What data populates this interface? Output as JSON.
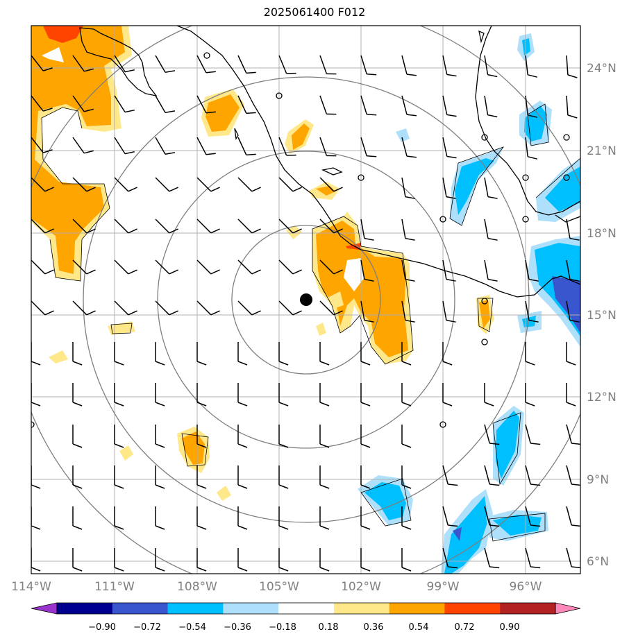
{
  "title": "2025061400 F012",
  "lon_labels": [
    "114°W",
    "111°W",
    "108°W",
    "105°W",
    "102°W",
    "99°W",
    "96°W"
  ],
  "lat_labels": [
    "24°N",
    "21°N",
    "18°N",
    "15°N",
    "12°N",
    "9°N",
    "6°N"
  ],
  "colorbar": {
    "ticks": [
      "−0.90",
      "−0.72",
      "−0.54",
      "−0.36",
      "−0.18",
      "0.18",
      "0.36",
      "0.54",
      "0.72",
      "0.90"
    ],
    "colors": [
      "#9933cc",
      "#000090",
      "#3a56cf",
      "#00bfff",
      "#aee0fb",
      "#ffffff",
      "#ffe88a",
      "#ffa500",
      "#ff4400",
      "#b22222",
      "#ff88bb"
    ]
  },
  "center_marker": {
    "lon": -104.0,
    "lat": 15.5
  },
  "range_rings_deg": [
    2.7,
    5.4,
    8.1,
    10.8
  ]
}
